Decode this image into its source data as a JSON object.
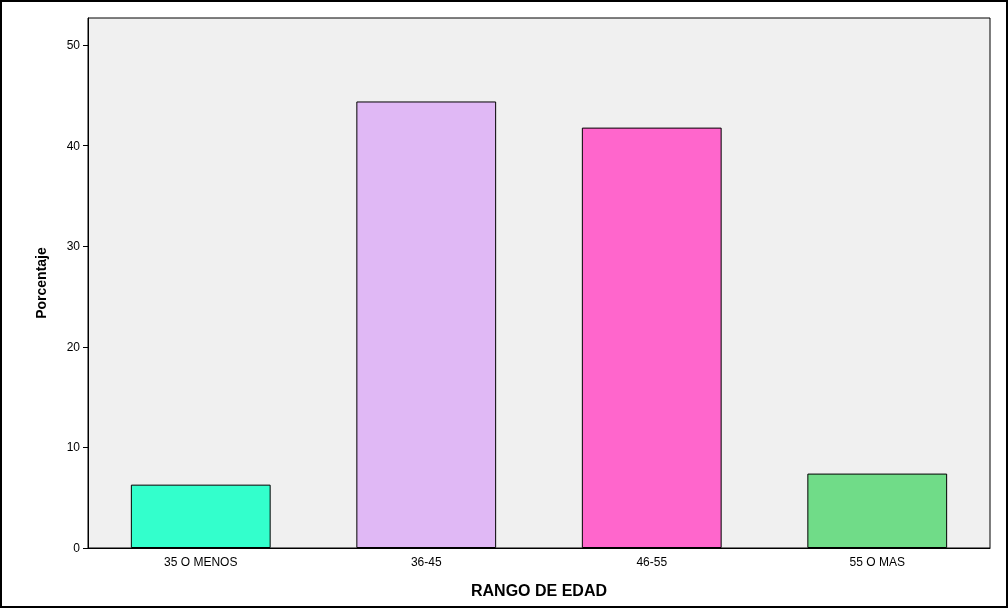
{
  "chart_data": {
    "type": "bar",
    "xlabel": "RANGO DE EDAD",
    "ylabel": "Porcentaje",
    "categories": [
      "35 O MENOS",
      "36-45",
      "46-55",
      "55 O MAS"
    ],
    "values": [
      6.3,
      44.4,
      41.8,
      7.4
    ],
    "colors": [
      "#33ffcc",
      "#e0b8f5",
      "#ff66cc",
      "#70dc88"
    ],
    "ylim": [
      0,
      52.7
    ],
    "yticks": [
      0,
      10,
      20,
      30,
      40,
      50
    ],
    "grid": false
  }
}
